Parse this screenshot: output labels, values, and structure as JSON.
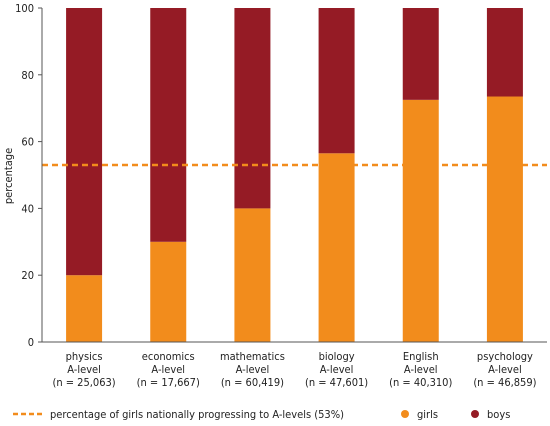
{
  "chart_data": {
    "type": "bar",
    "stacked": true,
    "percent_scale": true,
    "ylabel": "percentage",
    "xlabel": "",
    "ylim": [
      0,
      100
    ],
    "yticks": [
      0,
      20,
      40,
      60,
      80,
      100
    ],
    "grid": false,
    "categories": [
      [
        "physics",
        "A-level",
        "(n = 25,063)"
      ],
      [
        "economics",
        "A-level",
        "(n = 17,667)"
      ],
      [
        "mathematics",
        "A-level",
        "(n = 60,419)"
      ],
      [
        "biology",
        "A-level",
        "(n = 47,601)"
      ],
      [
        "English",
        "A-level",
        "(n = 40,310)"
      ],
      [
        "psychology",
        "A-level",
        "(n = 46,859)"
      ]
    ],
    "series": [
      {
        "name": "girls",
        "color": "#f28c1c",
        "values": [
          20,
          30,
          40,
          56.5,
          72.5,
          73.5
        ]
      },
      {
        "name": "boys",
        "color": "#951b25",
        "values": [
          80,
          70,
          60,
          43.5,
          27.5,
          26.5
        ]
      }
    ],
    "reference_line": {
      "label": "percentage of girls nationally progressing to A-levels (53%)",
      "value": 53,
      "color": "#f28c1c",
      "style": "dashed"
    },
    "legend_placement": "bottom"
  }
}
